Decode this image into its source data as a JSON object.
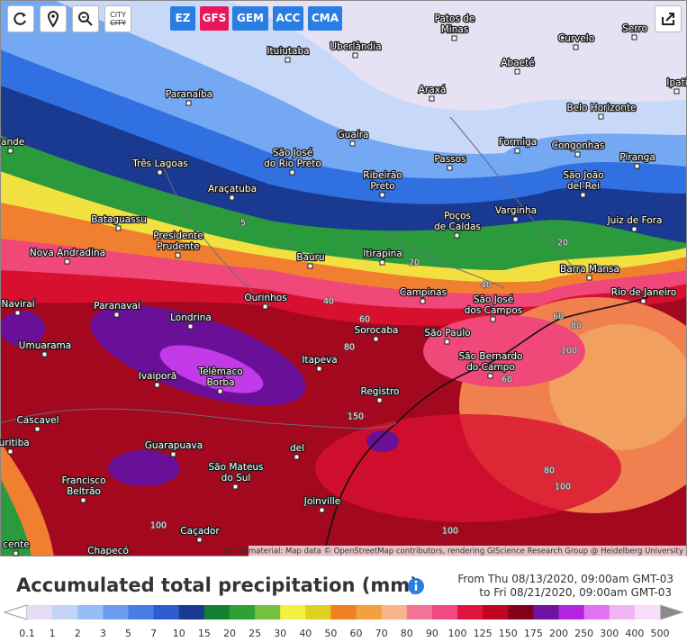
{
  "toolbar": {
    "city_button": [
      "CITY",
      "CITY"
    ],
    "models": [
      "EZ",
      "GFS",
      "GEM",
      "ACC",
      "CMA"
    ],
    "active_model": "GFS"
  },
  "map": {
    "cities": [
      {
        "lines": [
          "Patos de",
          "Minas"
        ]
      },
      {
        "lines": [
          "Curvelo"
        ]
      },
      {
        "lines": [
          "Serro"
        ]
      },
      {
        "lines": [
          "Uberlândia"
        ]
      },
      {
        "lines": [
          "Ituiutaba"
        ]
      },
      {
        "lines": [
          "Abaeté"
        ]
      },
      {
        "lines": [
          "Paranaíba"
        ]
      },
      {
        "lines": [
          "Araxá"
        ]
      },
      {
        "lines": [
          "Ipati"
        ]
      },
      {
        "lines": [
          "rande"
        ]
      },
      {
        "lines": [
          "Belo Horizonte"
        ]
      },
      {
        "lines": [
          "Guaíra"
        ]
      },
      {
        "lines": [
          "Formiga"
        ]
      },
      {
        "lines": [
          "Congonhas"
        ]
      },
      {
        "lines": [
          "São José",
          "do Rio Preto"
        ]
      },
      {
        "lines": [
          "Três Lagoas"
        ]
      },
      {
        "lines": [
          "Passos"
        ]
      },
      {
        "lines": [
          "Piranga"
        ]
      },
      {
        "lines": [
          "Ribeirão",
          "Preto"
        ]
      },
      {
        "lines": [
          "São João",
          "del-Rei"
        ]
      },
      {
        "lines": [
          "Araçatuba"
        ]
      },
      {
        "lines": [
          "Varginha"
        ]
      },
      {
        "lines": [
          "Poços",
          "de Caldas"
        ]
      },
      {
        "lines": [
          "Juiz de Fora"
        ]
      },
      {
        "lines": [
          "Bataguassu"
        ]
      },
      {
        "lines": [
          "Presidente",
          "Prudente"
        ]
      },
      {
        "lines": [
          "Nova Andradina"
        ]
      },
      {
        "lines": [
          "Itirapina"
        ]
      },
      {
        "lines": [
          "Bauru"
        ]
      },
      {
        "lines": [
          "Barra Mansa"
        ]
      },
      {
        "lines": [
          "Campinas"
        ]
      },
      {
        "lines": [
          "Ourinhos"
        ]
      },
      {
        "lines": [
          "São José",
          "dos Campos"
        ]
      },
      {
        "lines": [
          "Rio de Janeiro"
        ]
      },
      {
        "lines": [
          "Naviraí"
        ]
      },
      {
        "lines": [
          "Paranavaí"
        ]
      },
      {
        "lines": [
          "Londrina"
        ]
      },
      {
        "lines": [
          "Sorocaba"
        ]
      },
      {
        "lines": [
          "São Paulo"
        ]
      },
      {
        "lines": [
          "Umuarama"
        ]
      },
      {
        "lines": [
          "São Bernardo",
          "do Campo"
        ]
      },
      {
        "lines": [
          "Itapeva"
        ]
      },
      {
        "lines": [
          "Ivaiporã"
        ]
      },
      {
        "lines": [
          "Telêmaco",
          "Borba"
        ]
      },
      {
        "lines": [
          "Registro"
        ]
      },
      {
        "lines": [
          "Cascavel"
        ]
      },
      {
        "lines": [
          "del"
        ]
      },
      {
        "lines": [
          "Curitiba"
        ]
      },
      {
        "lines": [
          "Guarapuava"
        ]
      },
      {
        "lines": [
          "São Mateus",
          "do Sul"
        ]
      },
      {
        "lines": [
          "Francisco",
          "Beltrão"
        ]
      },
      {
        "lines": [
          "Joinville"
        ]
      },
      {
        "lines": [
          "Caçador"
        ]
      },
      {
        "lines": [
          "Chapecó"
        ]
      },
      {
        "lines": [
          "cente"
        ]
      }
    ],
    "contour_labels": [
      "5",
      "20",
      "20",
      "40",
      "40",
      "60",
      "80",
      "60",
      "80",
      "100",
      "60",
      "150",
      "80",
      "100",
      "100",
      "100"
    ],
    "attribution": "Kartenmaterial: Map data © OpenStreetMap contributors, rendering GIScience Research Group @ Heidelberg University"
  },
  "legend": {
    "title": "Accumulated total precipitation (mm)",
    "period": [
      "From Thu 08/13/2020, 09:00am GMT-03",
      "to Fri 08/21/2020, 09:00am GMT-03"
    ],
    "labels": [
      "0.1",
      "1",
      "2",
      "3",
      "5",
      "7",
      "10",
      "15",
      "20",
      "25",
      "30",
      "40",
      "50",
      "60",
      "70",
      "80",
      "90",
      "100",
      "125",
      "150",
      "175",
      "200",
      "250",
      "300",
      "400",
      "500"
    ],
    "colors": [
      "#e4dcf2",
      "#c4d4f8",
      "#98bcf6",
      "#6c9cf0",
      "#4a7ce6",
      "#2c5cd0",
      "#1a3a92",
      "#138030",
      "#2fa034",
      "#74c040",
      "#f2f040",
      "#e0d020",
      "#f08020",
      "#f2a040",
      "#f8b488",
      "#f27496",
      "#f04a82",
      "#e0123e",
      "#c00422",
      "#82001a",
      "#7012a2",
      "#b424e0",
      "#e074f0",
      "#f2b4f2",
      "#f8dcf8"
    ]
  }
}
